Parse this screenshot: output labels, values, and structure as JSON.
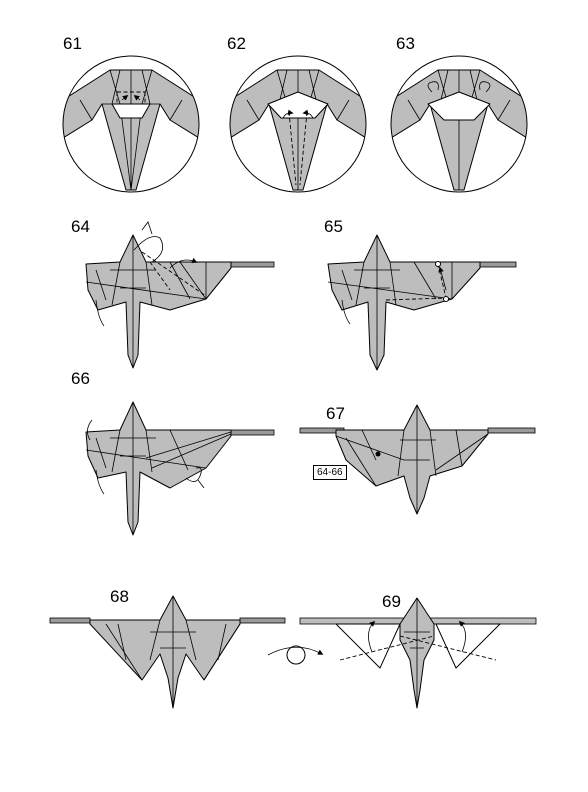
{
  "steps": [
    {
      "number": "61"
    },
    {
      "number": "62"
    },
    {
      "number": "63"
    },
    {
      "number": "64"
    },
    {
      "number": "65"
    },
    {
      "number": "66"
    },
    {
      "number": "67"
    },
    {
      "number": "68"
    },
    {
      "number": "69"
    }
  ],
  "step67": {
    "reference_label": "64-66"
  },
  "colors": {
    "paper_grey": "#bdbdbd",
    "paper_white": "#ffffff",
    "line": "#000000"
  },
  "symbols": [
    "mountain-fold-line",
    "valley-fold-line",
    "fold-arrow",
    "turn-over-icon",
    "pleat-arrow"
  ]
}
